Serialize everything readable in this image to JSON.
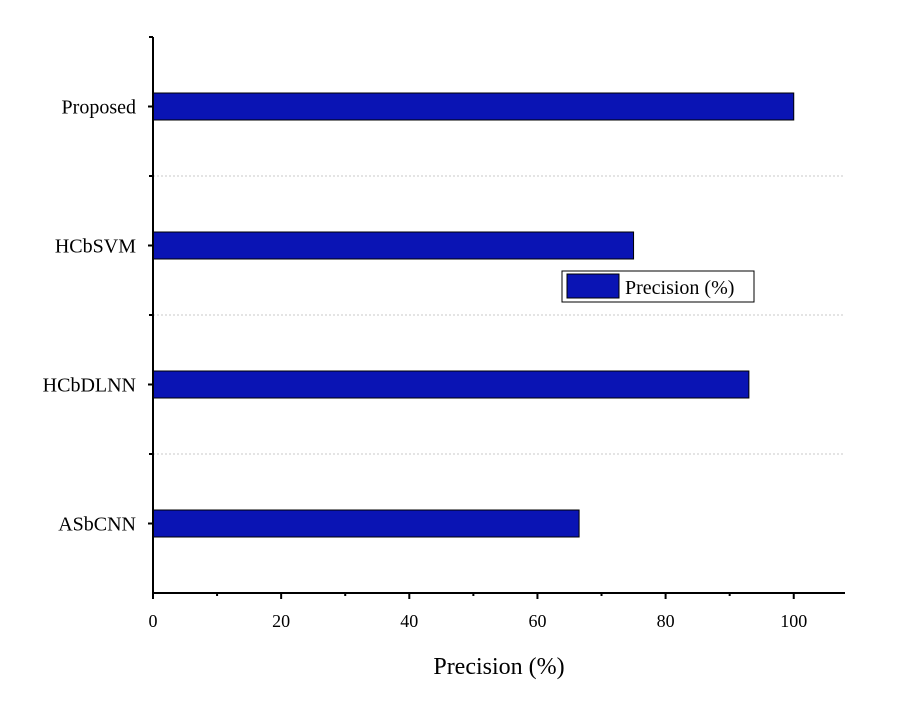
{
  "chart_data": {
    "type": "bar",
    "orientation": "horizontal",
    "categories": [
      "ASbCNN",
      "HCbDLNN",
      "HCbSVM",
      "Proposed"
    ],
    "series": [
      {
        "name": "Precision (%)",
        "values": [
          66.5,
          93,
          75,
          100
        ],
        "color": "#0a14b4"
      }
    ],
    "title": "",
    "xlabel": "Precision (%)",
    "ylabel": "",
    "xlim": [
      0,
      108
    ],
    "xticks": [
      0,
      20,
      40,
      60,
      80,
      100
    ],
    "grid": "horizontal dashed separators between categories",
    "legend_position": "center-right"
  },
  "colors": {
    "bar": "#0a14b4",
    "axis": "#000000",
    "grid": "#c8c8c8"
  }
}
